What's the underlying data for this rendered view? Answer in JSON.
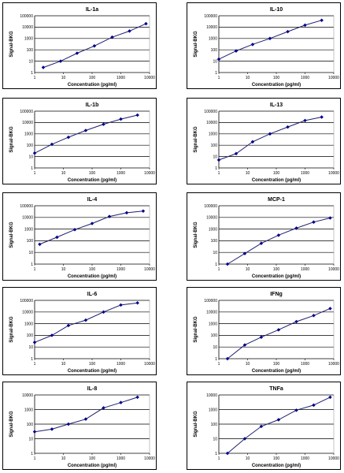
{
  "chart_data": [
    {
      "type": "line",
      "title": "IL-1a",
      "xlabel": "Concentration (pg/ml)",
      "ylabel": "Signal-BKG",
      "xscale": "log",
      "yscale": "log",
      "xlim": [
        1,
        10000
      ],
      "ylim": [
        1,
        100000
      ],
      "x_ticks": [
        "1",
        "10",
        "100",
        "1000",
        "10000"
      ],
      "y_ticks": [
        "1",
        "10",
        "100",
        "1000",
        "10000",
        "100000"
      ],
      "x": [
        2,
        8,
        30,
        120,
        500,
        2000,
        7500
      ],
      "y": [
        2.8,
        10,
        50,
        220,
        1300,
        4500,
        20000
      ]
    },
    {
      "type": "line",
      "title": "IL-10",
      "xlabel": "Concentration (pg/ml)",
      "ylabel": "Signal-BKG",
      "xscale": "log",
      "yscale": "log",
      "xlim": [
        1,
        10000
      ],
      "ylim": [
        1,
        100000
      ],
      "x_ticks": [
        "1",
        "10",
        "100",
        "1000",
        "10000"
      ],
      "y_ticks": [
        "1",
        "10",
        "100",
        "1000",
        "10000",
        "100000"
      ],
      "x": [
        1,
        4,
        15,
        60,
        250,
        1000,
        3800
      ],
      "y": [
        15,
        80,
        300,
        1000,
        4000,
        15000,
        40000
      ]
    },
    {
      "type": "line",
      "title": "IL-1b",
      "xlabel": "Concentration (pg/ml)",
      "ylabel": "Signal-BKG",
      "xscale": "log",
      "yscale": "log",
      "xlim": [
        1,
        10000
      ],
      "ylim": [
        1,
        100000
      ],
      "x_ticks": [
        "1",
        "10",
        "100",
        "1000",
        "10000"
      ],
      "y_ticks": [
        "1",
        "10",
        "100",
        "1000",
        "10000",
        "100000"
      ],
      "x": [
        1,
        4,
        15,
        60,
        250,
        1000,
        3800
      ],
      "y": [
        20,
        120,
        500,
        2000,
        7000,
        20000,
        45000
      ]
    },
    {
      "type": "line",
      "title": "IL-13",
      "xlabel": "Concentration (pg/ml)",
      "ylabel": "Signal-BKG",
      "xscale": "log",
      "yscale": "log",
      "xlim": [
        1,
        10000
      ],
      "ylim": [
        1,
        100000
      ],
      "x_ticks": [
        "1",
        "10",
        "100",
        "1000",
        "10000"
      ],
      "y_ticks": [
        "1",
        "10",
        "100",
        "1000",
        "10000",
        "100000"
      ],
      "x": [
        1,
        4,
        15,
        60,
        250,
        1000,
        3800
      ],
      "y": [
        5,
        18,
        200,
        1000,
        4000,
        15000,
        30000
      ]
    },
    {
      "type": "line",
      "title": "IL-4",
      "xlabel": "Concentration (pg/ml)",
      "ylabel": "Signal-BKG",
      "xscale": "log",
      "yscale": "log",
      "xlim": [
        1,
        10000
      ],
      "ylim": [
        1,
        100000
      ],
      "x_ticks": [
        "1",
        "10",
        "100",
        "1000",
        "10000"
      ],
      "y_ticks": [
        "1",
        "10",
        "100",
        "1000",
        "10000",
        "100000"
      ],
      "x": [
        1.5,
        6,
        25,
        100,
        400,
        1600,
        6000
      ],
      "y": [
        50,
        200,
        900,
        3000,
        12000,
        25000,
        35000
      ]
    },
    {
      "type": "line",
      "title": "MCP-1",
      "xlabel": "Concentration (pg/ml)",
      "ylabel": "Signal-BKG",
      "xscale": "log",
      "yscale": "log",
      "xlim": [
        1,
        10000
      ],
      "ylim": [
        1,
        100000
      ],
      "x_ticks": [
        "1",
        "10",
        "100",
        "1000",
        "10000"
      ],
      "y_ticks": [
        "1",
        "10",
        "100",
        "1000",
        "10000",
        "100000"
      ],
      "x": [
        2,
        8,
        30,
        120,
        500,
        2000,
        7500
      ],
      "y": [
        1,
        8,
        60,
        300,
        1200,
        4000,
        9000
      ]
    },
    {
      "type": "line",
      "title": "IL-6",
      "xlabel": "Concentration (pg/ml)",
      "ylabel": "Signal-BKG",
      "xscale": "log",
      "yscale": "log",
      "xlim": [
        1,
        10000
      ],
      "ylim": [
        1,
        100000
      ],
      "x_ticks": [
        "1",
        "10",
        "100",
        "1000",
        "10000"
      ],
      "y_ticks": [
        "1",
        "10",
        "100",
        "1000",
        "10000",
        "100000"
      ],
      "x": [
        1,
        4,
        15,
        60,
        250,
        1000,
        3800
      ],
      "y": [
        25,
        100,
        700,
        2000,
        10000,
        40000,
        60000
      ]
    },
    {
      "type": "line",
      "title": "IFNg",
      "xlabel": "Concentration (pg/ml)",
      "ylabel": "Signal-BKG",
      "xscale": "log",
      "yscale": "log",
      "xlim": [
        1,
        10000
      ],
      "ylim": [
        1,
        100000
      ],
      "x_ticks": [
        "1",
        "10",
        "100",
        "1000",
        "10000"
      ],
      "y_ticks": [
        "1",
        "10",
        "100",
        "1000",
        "10000",
        "100000"
      ],
      "x": [
        2,
        8,
        30,
        120,
        500,
        2000,
        7500
      ],
      "y": [
        1,
        15,
        70,
        300,
        1500,
        5000,
        20000
      ]
    },
    {
      "type": "line",
      "title": "IL-8",
      "xlabel": "Concentration (pg/ml)",
      "ylabel": "Signal-BKG",
      "xscale": "log",
      "yscale": "log",
      "xlim": [
        1,
        10000
      ],
      "ylim": [
        1,
        10000
      ],
      "x_ticks": [
        "1",
        "10",
        "100",
        "1000",
        "10000"
      ],
      "y_ticks": [
        "1",
        "10",
        "100",
        "1000",
        "10000"
      ],
      "x": [
        1,
        4,
        15,
        60,
        250,
        1000,
        3800
      ],
      "y": [
        30,
        45,
        100,
        220,
        1300,
        3000,
        7000
      ]
    },
    {
      "type": "line",
      "title": "TNFa",
      "xlabel": "Concentration (pg/ml)",
      "ylabel": "Signal-BKG",
      "xscale": "log",
      "yscale": "log",
      "xlim": [
        1,
        10000
      ],
      "ylim": [
        1,
        10000
      ],
      "x_ticks": [
        "1",
        "10",
        "100",
        "1000",
        "10000"
      ],
      "y_ticks": [
        "1",
        "10",
        "100",
        "1000",
        "10000"
      ],
      "x": [
        2,
        8,
        30,
        120,
        500,
        2000,
        7500
      ],
      "y": [
        1,
        10,
        70,
        200,
        900,
        2000,
        7000
      ]
    }
  ],
  "colors": {
    "line": "#1f1f6e",
    "marker": "#00008b",
    "grid": "#000000",
    "border": "#000000"
  }
}
